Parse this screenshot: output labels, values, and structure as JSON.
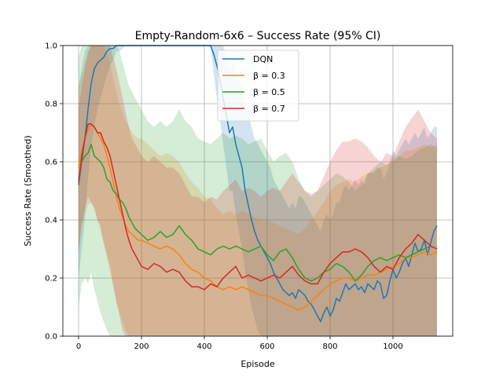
{
  "chart_data": {
    "type": "line",
    "title": "Empty-Random-6x6 – Success Rate (95% CI)",
    "xlabel": "Episode",
    "ylabel": "Success Rate (Smoothed)",
    "xlim": [
      -50,
      1190
    ],
    "ylim": [
      0.0,
      1.0
    ],
    "xticks": [
      0,
      200,
      400,
      600,
      800,
      1000
    ],
    "yticks": [
      0.0,
      0.2,
      0.4,
      0.6,
      0.8,
      1.0
    ],
    "grid": true,
    "legend_position": "top-center",
    "series": [
      {
        "name": "DQN",
        "color": "#1f77b4",
        "x": [
          0,
          10,
          20,
          30,
          40,
          50,
          60,
          70,
          80,
          90,
          100,
          110,
          120,
          130,
          150,
          200,
          250,
          300,
          350,
          400,
          420,
          430,
          440,
          450,
          460,
          470,
          480,
          490,
          500,
          510,
          520,
          530,
          540,
          550,
          560,
          570,
          580,
          590,
          600,
          610,
          620,
          630,
          640,
          650,
          660,
          670,
          680,
          690,
          700,
          710,
          720,
          730,
          740,
          750,
          760,
          770,
          780,
          790,
          800,
          810,
          820,
          830,
          840,
          850,
          860,
          870,
          880,
          890,
          900,
          910,
          920,
          930,
          940,
          950,
          960,
          970,
          980,
          990,
          1000,
          1010,
          1020,
          1030,
          1040,
          1050,
          1060,
          1070,
          1080,
          1090,
          1100,
          1110,
          1120,
          1130,
          1140
        ],
        "y": [
          0.52,
          0.6,
          0.68,
          0.78,
          0.87,
          0.92,
          0.94,
          0.95,
          0.96,
          0.98,
          0.99,
          0.99,
          1.0,
          1.0,
          1.0,
          1.0,
          1.0,
          1.0,
          1.0,
          1.0,
          1.0,
          0.97,
          0.93,
          0.88,
          0.82,
          0.76,
          0.7,
          0.72,
          0.66,
          0.62,
          0.58,
          0.5,
          0.45,
          0.4,
          0.36,
          0.33,
          0.31,
          0.29,
          0.27,
          0.25,
          0.22,
          0.2,
          0.18,
          0.16,
          0.15,
          0.14,
          0.15,
          0.13,
          0.16,
          0.15,
          0.14,
          0.12,
          0.11,
          0.09,
          0.07,
          0.05,
          0.08,
          0.1,
          0.07,
          0.09,
          0.13,
          0.12,
          0.15,
          0.18,
          0.16,
          0.17,
          0.18,
          0.16,
          0.17,
          0.15,
          0.18,
          0.17,
          0.16,
          0.19,
          0.18,
          0.13,
          0.14,
          0.19,
          0.23,
          0.2,
          0.22,
          0.25,
          0.27,
          0.24,
          0.28,
          0.32,
          0.29,
          0.3,
          0.33,
          0.28,
          0.32,
          0.36,
          0.38
        ],
        "ci_lower": [
          0.2,
          0.3,
          0.4,
          0.55,
          0.65,
          0.72,
          0.78,
          0.82,
          0.86,
          0.9,
          0.93,
          0.95,
          0.98,
          0.98,
          1.0,
          1.0,
          1.0,
          1.0,
          1.0,
          1.0,
          1.0,
          0.9,
          0.82,
          0.74,
          0.66,
          0.58,
          0.5,
          0.5,
          0.42,
          0.36,
          0.3,
          0.22,
          0.16,
          0.1,
          0.06,
          0.02,
          0.0,
          0.0,
          0.0,
          0.0,
          0.0,
          0.0,
          0.0,
          0.0,
          0.0,
          0.0,
          0.0,
          0.0,
          0.0,
          0.0,
          0.0,
          0.0,
          0.0,
          0.0,
          0.0,
          0.0,
          0.0,
          0.0,
          0.0,
          0.0,
          0.0,
          0.0,
          0.0,
          0.0,
          0.0,
          0.0,
          0.0,
          0.0,
          0.0,
          0.0,
          0.0,
          0.0,
          0.0,
          0.0,
          0.0,
          0.0,
          0.0,
          0.0,
          0.0,
          0.0,
          0.0,
          0.0,
          0.0,
          0.0,
          0.0,
          0.0,
          0.0,
          0.0,
          0.0,
          0.0,
          0.0,
          0.0,
          0.0
        ],
        "ci_upper": [
          0.86,
          0.92,
          0.98,
          1.0,
          1.0,
          1.0,
          1.0,
          1.0,
          1.0,
          1.0,
          1.0,
          1.0,
          1.0,
          1.0,
          1.0,
          1.0,
          1.0,
          1.0,
          1.0,
          1.0,
          1.0,
          1.0,
          1.0,
          1.0,
          1.0,
          0.96,
          0.92,
          0.94,
          0.9,
          0.88,
          0.86,
          0.8,
          0.76,
          0.72,
          0.68,
          0.66,
          0.64,
          0.62,
          0.6,
          0.58,
          0.54,
          0.52,
          0.5,
          0.48,
          0.46,
          0.44,
          0.46,
          0.44,
          0.48,
          0.48,
          0.46,
          0.44,
          0.42,
          0.4,
          0.38,
          0.36,
          0.4,
          0.42,
          0.4,
          0.42,
          0.46,
          0.46,
          0.5,
          0.52,
          0.5,
          0.52,
          0.54,
          0.52,
          0.54,
          0.52,
          0.56,
          0.56,
          0.56,
          0.58,
          0.58,
          0.54,
          0.56,
          0.6,
          0.64,
          0.62,
          0.64,
          0.66,
          0.68,
          0.66,
          0.68,
          0.7,
          0.68,
          0.7,
          0.72,
          0.68,
          0.7,
          0.72,
          0.72
        ]
      },
      {
        "name": "β = 0.3",
        "color": "#ff7f0e",
        "x": [
          0,
          10,
          20,
          30,
          40,
          50,
          60,
          70,
          80,
          90,
          100,
          110,
          120,
          130,
          140,
          150,
          160,
          170,
          180,
          190,
          200,
          220,
          240,
          260,
          280,
          300,
          320,
          340,
          360,
          380,
          400,
          420,
          440,
          460,
          480,
          500,
          520,
          540,
          560,
          580,
          600,
          620,
          640,
          660,
          680,
          700,
          720,
          740,
          760,
          780,
          800,
          820,
          840,
          860,
          880,
          900,
          920,
          940,
          960,
          980,
          1000,
          1020,
          1040,
          1060,
          1080,
          1100,
          1120,
          1140
        ],
        "y": [
          0.58,
          0.64,
          0.68,
          0.71,
          0.73,
          0.72,
          0.7,
          0.68,
          0.66,
          0.62,
          0.58,
          0.53,
          0.48,
          0.44,
          0.41,
          0.38,
          0.36,
          0.35,
          0.34,
          0.33,
          0.33,
          0.32,
          0.31,
          0.3,
          0.31,
          0.3,
          0.28,
          0.25,
          0.23,
          0.22,
          0.2,
          0.19,
          0.17,
          0.16,
          0.17,
          0.16,
          0.17,
          0.16,
          0.15,
          0.14,
          0.14,
          0.13,
          0.12,
          0.11,
          0.1,
          0.09,
          0.1,
          0.12,
          0.14,
          0.16,
          0.18,
          0.19,
          0.2,
          0.2,
          0.19,
          0.2,
          0.21,
          0.21,
          0.22,
          0.23,
          0.24,
          0.25,
          0.27,
          0.27,
          0.28,
          0.29,
          0.28,
          0.29
        ],
        "ci_lower": [
          0.3,
          0.38,
          0.42,
          0.45,
          0.46,
          0.44,
          0.4,
          0.36,
          0.32,
          0.27,
          0.22,
          0.17,
          0.12,
          0.08,
          0.05,
          0.02,
          0.0,
          0.0,
          0.0,
          0.0,
          0.0,
          0.0,
          0.0,
          0.0,
          0.0,
          0.0,
          0.0,
          0.0,
          0.0,
          0.0,
          0.0,
          0.0,
          0.0,
          0.0,
          0.0,
          0.0,
          0.0,
          0.0,
          0.0,
          0.0,
          0.0,
          0.0,
          0.0,
          0.0,
          0.0,
          0.0,
          0.0,
          0.0,
          0.0,
          0.0,
          0.0,
          0.0,
          0.0,
          0.0,
          0.0,
          0.0,
          0.0,
          0.0,
          0.0,
          0.0,
          0.0,
          0.0,
          0.0,
          0.0,
          0.0,
          0.0,
          0.0,
          0.0
        ],
        "ci_upper": [
          0.86,
          0.9,
          0.94,
          0.97,
          1.0,
          1.0,
          1.0,
          1.0,
          1.0,
          0.97,
          0.94,
          0.89,
          0.84,
          0.8,
          0.77,
          0.74,
          0.72,
          0.7,
          0.69,
          0.68,
          0.68,
          0.66,
          0.64,
          0.62,
          0.63,
          0.62,
          0.6,
          0.56,
          0.53,
          0.51,
          0.48,
          0.47,
          0.44,
          0.42,
          0.43,
          0.42,
          0.43,
          0.42,
          0.41,
          0.4,
          0.4,
          0.39,
          0.38,
          0.37,
          0.36,
          0.35,
          0.37,
          0.4,
          0.43,
          0.46,
          0.5,
          0.52,
          0.53,
          0.54,
          0.53,
          0.55,
          0.56,
          0.57,
          0.58,
          0.59,
          0.61,
          0.62,
          0.64,
          0.64,
          0.65,
          0.66,
          0.65,
          0.66
        ]
      },
      {
        "name": "β = 0.5",
        "color": "#2ca02c",
        "x": [
          0,
          10,
          20,
          30,
          40,
          50,
          60,
          70,
          80,
          90,
          100,
          110,
          120,
          130,
          140,
          150,
          160,
          170,
          180,
          190,
          200,
          220,
          240,
          260,
          280,
          300,
          320,
          340,
          360,
          380,
          400,
          420,
          440,
          460,
          480,
          500,
          520,
          540,
          560,
          580,
          600,
          620,
          640,
          660,
          680,
          700,
          720,
          740,
          760,
          780,
          800,
          820,
          840,
          860,
          880,
          900,
          920,
          940,
          960,
          980,
          1000,
          1020,
          1040,
          1060,
          1080,
          1100,
          1120,
          1140
        ],
        "y": [
          0.54,
          0.6,
          0.62,
          0.63,
          0.66,
          0.62,
          0.61,
          0.6,
          0.58,
          0.54,
          0.53,
          0.5,
          0.49,
          0.47,
          0.46,
          0.44,
          0.41,
          0.39,
          0.37,
          0.36,
          0.35,
          0.33,
          0.34,
          0.36,
          0.34,
          0.35,
          0.38,
          0.35,
          0.33,
          0.3,
          0.29,
          0.28,
          0.3,
          0.31,
          0.3,
          0.31,
          0.3,
          0.29,
          0.3,
          0.31,
          0.28,
          0.26,
          0.29,
          0.3,
          0.27,
          0.23,
          0.2,
          0.19,
          0.2,
          0.22,
          0.23,
          0.25,
          0.24,
          0.22,
          0.19,
          0.21,
          0.24,
          0.26,
          0.27,
          0.26,
          0.27,
          0.28,
          0.27,
          0.28,
          0.29,
          0.3,
          0.31,
          0.3
        ],
        "ci_lower": [
          0.1,
          0.18,
          0.2,
          0.18,
          0.22,
          0.16,
          0.12,
          0.08,
          0.05,
          0.02,
          0.0,
          0.0,
          0.0,
          0.0,
          0.0,
          0.0,
          0.0,
          0.0,
          0.0,
          0.0,
          0.0,
          0.0,
          0.0,
          0.0,
          0.0,
          0.0,
          0.0,
          0.0,
          0.0,
          0.0,
          0.0,
          0.0,
          0.0,
          0.0,
          0.0,
          0.0,
          0.0,
          0.0,
          0.0,
          0.0,
          0.0,
          0.0,
          0.0,
          0.0,
          0.0,
          0.0,
          0.0,
          0.0,
          0.0,
          0.0,
          0.0,
          0.0,
          0.0,
          0.0,
          0.0,
          0.0,
          0.0,
          0.0,
          0.0,
          0.0,
          0.0,
          0.0,
          0.0,
          0.0,
          0.0,
          0.0,
          0.0,
          0.0
        ],
        "ci_upper": [
          0.96,
          1.0,
          1.0,
          1.0,
          1.0,
          1.0,
          1.0,
          1.0,
          1.0,
          1.0,
          1.0,
          1.0,
          1.0,
          0.98,
          0.94,
          0.9,
          0.86,
          0.84,
          0.82,
          0.8,
          0.78,
          0.74,
          0.72,
          0.74,
          0.72,
          0.74,
          0.78,
          0.74,
          0.72,
          0.68,
          0.67,
          0.66,
          0.68,
          0.7,
          0.68,
          0.69,
          0.68,
          0.66,
          0.67,
          0.68,
          0.64,
          0.6,
          0.62,
          0.63,
          0.6,
          0.54,
          0.5,
          0.48,
          0.5,
          0.52,
          0.54,
          0.56,
          0.55,
          0.53,
          0.5,
          0.52,
          0.56,
          0.58,
          0.6,
          0.59,
          0.6,
          0.62,
          0.61,
          0.62,
          0.64,
          0.65,
          0.66,
          0.65
        ]
      },
      {
        "name": "β = 0.7",
        "color": "#d62728",
        "x": [
          0,
          10,
          20,
          30,
          40,
          50,
          60,
          70,
          80,
          90,
          100,
          110,
          120,
          130,
          140,
          150,
          160,
          170,
          180,
          190,
          200,
          220,
          240,
          260,
          280,
          300,
          320,
          340,
          360,
          380,
          400,
          420,
          440,
          460,
          480,
          500,
          520,
          540,
          560,
          580,
          600,
          620,
          640,
          660,
          680,
          700,
          720,
          740,
          760,
          780,
          800,
          820,
          840,
          860,
          880,
          900,
          920,
          940,
          960,
          980,
          1000,
          1020,
          1040,
          1060,
          1080,
          1100,
          1120,
          1140
        ],
        "y": [
          0.53,
          0.62,
          0.68,
          0.73,
          0.73,
          0.72,
          0.7,
          0.7,
          0.67,
          0.65,
          0.62,
          0.57,
          0.52,
          0.47,
          0.42,
          0.37,
          0.33,
          0.3,
          0.28,
          0.26,
          0.24,
          0.23,
          0.25,
          0.24,
          0.22,
          0.23,
          0.22,
          0.19,
          0.17,
          0.17,
          0.16,
          0.18,
          0.17,
          0.2,
          0.22,
          0.24,
          0.2,
          0.21,
          0.2,
          0.19,
          0.2,
          0.21,
          0.2,
          0.22,
          0.24,
          0.21,
          0.19,
          0.18,
          0.18,
          0.22,
          0.25,
          0.27,
          0.29,
          0.29,
          0.3,
          0.29,
          0.27,
          0.24,
          0.22,
          0.24,
          0.23,
          0.27,
          0.3,
          0.32,
          0.35,
          0.33,
          0.31,
          0.3
        ],
        "ci_lower": [
          0.28,
          0.38,
          0.44,
          0.48,
          0.46,
          0.44,
          0.4,
          0.38,
          0.32,
          0.28,
          0.24,
          0.18,
          0.12,
          0.07,
          0.02,
          0.0,
          0.0,
          0.0,
          0.0,
          0.0,
          0.0,
          0.0,
          0.0,
          0.0,
          0.0,
          0.0,
          0.0,
          0.0,
          0.0,
          0.0,
          0.0,
          0.0,
          0.0,
          0.0,
          0.0,
          0.0,
          0.0,
          0.0,
          0.0,
          0.0,
          0.0,
          0.0,
          0.0,
          0.0,
          0.0,
          0.0,
          0.0,
          0.0,
          0.0,
          0.0,
          0.0,
          0.0,
          0.0,
          0.0,
          0.0,
          0.0,
          0.0,
          0.0,
          0.0,
          0.0,
          0.0,
          0.0,
          0.0,
          0.0,
          0.0,
          0.0,
          0.0,
          0.0
        ],
        "ci_upper": [
          0.78,
          0.86,
          0.92,
          0.98,
          1.0,
          1.0,
          1.0,
          1.0,
          1.0,
          1.0,
          1.0,
          0.96,
          0.92,
          0.87,
          0.82,
          0.77,
          0.72,
          0.68,
          0.66,
          0.64,
          0.62,
          0.6,
          0.62,
          0.6,
          0.58,
          0.58,
          0.56,
          0.52,
          0.48,
          0.48,
          0.46,
          0.48,
          0.47,
          0.5,
          0.52,
          0.54,
          0.5,
          0.51,
          0.5,
          0.48,
          0.5,
          0.51,
          0.5,
          0.53,
          0.56,
          0.53,
          0.5,
          0.49,
          0.5,
          0.55,
          0.6,
          0.64,
          0.67,
          0.67,
          0.68,
          0.67,
          0.65,
          0.62,
          0.6,
          0.63,
          0.62,
          0.67,
          0.72,
          0.75,
          0.78,
          0.74,
          0.7,
          0.68
        ]
      }
    ]
  }
}
